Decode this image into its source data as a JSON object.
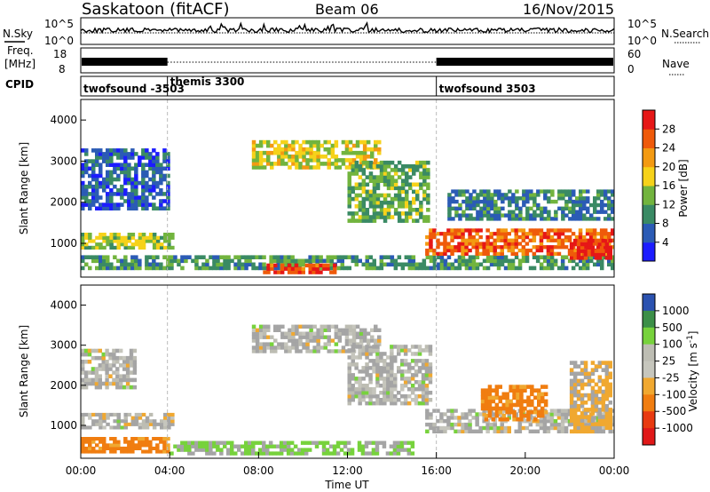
{
  "header": {
    "station": "Saskatoon (fitACF)",
    "beam": "Beam 06",
    "date": "16/Nov/2015"
  },
  "strip_labels": {
    "nsky": "N.Sky",
    "nsearch": "N.Search",
    "freq_line1": "Freq.",
    "freq_line2": "[MHz]",
    "nave": "Nave",
    "cpid": "CPID"
  },
  "strip_ticks": {
    "noise_left": [
      "10^5",
      "10^0"
    ],
    "noise_right": [
      "10^5",
      "10^0"
    ],
    "freq_left": [
      "18",
      "8"
    ],
    "nave_right": [
      "60",
      "0"
    ]
  },
  "cpid_segments": [
    {
      "label": "twofsound -3503",
      "start_h": 0,
      "end_h": 3.9
    },
    {
      "label": "themis 3300",
      "start_h": 3.9,
      "end_h": 16
    },
    {
      "label": "twofsound 3503",
      "start_h": 16,
      "end_h": 24
    }
  ],
  "colors": {
    "power_scale": [
      "#1c1cff",
      "#2b5bb5",
      "#3a8a64",
      "#72b43e",
      "#f6d21a",
      "#f39a12",
      "#ef5a0a",
      "#e61717"
    ],
    "velocity_scale": [
      "#2b52b0",
      "#3c8f48",
      "#77d23c",
      "#bdbdb3",
      "#c6c6bd",
      "#f0a830",
      "#f07d10",
      "#e83a10",
      "#e01818"
    ],
    "ground_scatter": "#a5a5a5"
  },
  "chart_data": [
    {
      "type": "heatmap",
      "title": "Power",
      "xlabel": "Time UT",
      "ylabel": "Slant Range [km]",
      "xlim_hours": [
        0,
        24
      ],
      "ylim_km": [
        180,
        4500
      ],
      "x_ticks": [
        "00:00",
        "04:00",
        "08:00",
        "12:00",
        "16:00",
        "20:00",
        "00:00"
      ],
      "y_ticks": [
        "1000",
        "2000",
        "3000",
        "4000"
      ],
      "colorbar": {
        "label": "Power [dB]",
        "ticks": [
          "4",
          "8",
          "12",
          "16",
          "20",
          "24",
          "28"
        ],
        "range": [
          0,
          30
        ]
      },
      "scatter_regions": [
        {
          "t0": 0,
          "t1": 4.0,
          "r0": 1800,
          "r1": 3300,
          "level": 6
        },
        {
          "t0": 0,
          "t1": 4.2,
          "r0": 850,
          "r1": 1250,
          "level": 14
        },
        {
          "t0": 0,
          "t1": 24,
          "r0": 350,
          "r1": 700,
          "level": 10
        },
        {
          "t0": 8.2,
          "t1": 11.5,
          "r0": 250,
          "r1": 500,
          "level": 26
        },
        {
          "t0": 7.7,
          "t1": 13.5,
          "r0": 2800,
          "r1": 3500,
          "level": 16
        },
        {
          "t0": 12.0,
          "t1": 15.7,
          "r0": 1500,
          "r1": 3000,
          "level": 12
        },
        {
          "t0": 15.5,
          "t1": 24,
          "r0": 700,
          "r1": 1350,
          "level": 24
        },
        {
          "t0": 16.5,
          "t1": 24,
          "r0": 1550,
          "r1": 2300,
          "level": 8
        },
        {
          "t0": 22.0,
          "t1": 23.9,
          "r0": 600,
          "r1": 1100,
          "level": 28
        }
      ]
    },
    {
      "type": "heatmap",
      "title": "Velocity",
      "xlabel": "Time UT",
      "ylabel": "Slant Range [km]",
      "xlim_hours": [
        0,
        24
      ],
      "ylim_km": [
        180,
        4500
      ],
      "x_ticks": [
        "00:00",
        "04:00",
        "08:00",
        "12:00",
        "16:00",
        "20:00",
        "00:00"
      ],
      "y_ticks": [
        "1000",
        "2000",
        "3000",
        "4000"
      ],
      "colorbar": {
        "label": "Velocity [m s-1]",
        "ticks": [
          "1000",
          "500",
          "100",
          "25",
          "-25",
          "-100",
          "-500",
          "-1000"
        ],
        "range": [
          -1200,
          1200
        ]
      },
      "scatter_regions": [
        {
          "t0": 0,
          "t1": 4.0,
          "r0": 300,
          "r1": 700,
          "vel": -300
        },
        {
          "t0": 0,
          "t1": 4.2,
          "r0": 900,
          "r1": 1300,
          "vel": 0
        },
        {
          "t0": 0,
          "t1": 2.5,
          "r0": 1900,
          "r1": 2900,
          "vel": 0
        },
        {
          "t0": 4.0,
          "t1": 15.0,
          "r0": 250,
          "r1": 600,
          "vel": 150
        },
        {
          "t0": 7.7,
          "t1": 13.5,
          "r0": 2800,
          "r1": 3500,
          "vel": 0
        },
        {
          "t0": 12.0,
          "t1": 15.8,
          "r0": 1500,
          "r1": 3000,
          "vel": 0
        },
        {
          "t0": 15.5,
          "t1": 24,
          "r0": 800,
          "r1": 1400,
          "vel": 0
        },
        {
          "t0": 18.0,
          "t1": 21.0,
          "r0": 1100,
          "r1": 2000,
          "vel": -300
        },
        {
          "t0": 22.0,
          "t1": 23.9,
          "r0": 800,
          "r1": 2600,
          "vel": -150
        }
      ]
    }
  ]
}
